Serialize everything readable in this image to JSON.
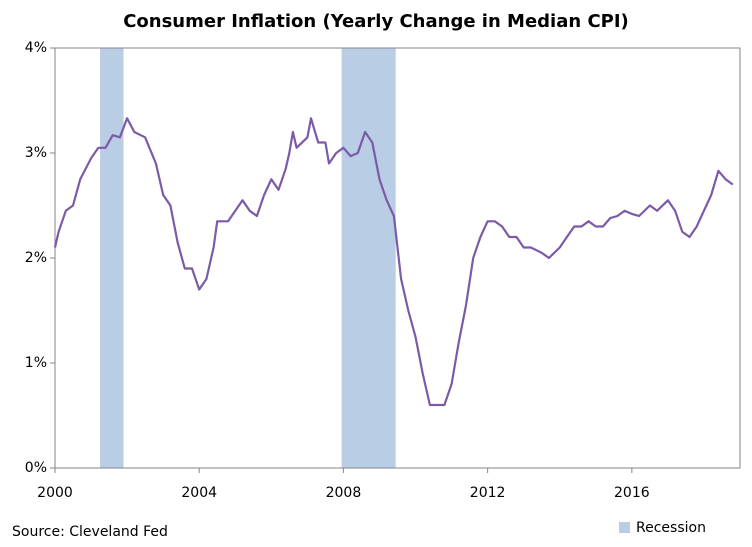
{
  "chart_data": {
    "type": "line",
    "title": "Consumer Inflation (Yearly Change in Median CPI)",
    "source": "Source: Cleveland Fed",
    "xlim": [
      2000,
      2019
    ],
    "xticks": [
      2000,
      2004,
      2008,
      2012,
      2016
    ],
    "ylim": [
      0,
      4
    ],
    "yticks": [
      {
        "value": 0,
        "label": "0%"
      },
      {
        "value": 1,
        "label": "1%"
      },
      {
        "value": 2,
        "label": "2%"
      },
      {
        "value": 3,
        "label": "3%"
      },
      {
        "value": 4,
        "label": "4%"
      }
    ],
    "grid": false,
    "recessions": {
      "name": "Recession",
      "color": "#b9cde5",
      "ranges": [
        [
          2001.25,
          2001.9
        ],
        [
          2007.95,
          2009.45
        ]
      ]
    },
    "series": [
      {
        "color": "#7b5ba8",
        "x": [
          2000.0,
          2000.1,
          2000.3,
          2000.5,
          2000.7,
          2001.0,
          2001.2,
          2001.4,
          2001.6,
          2001.8,
          2002.0,
          2002.2,
          2002.5,
          2002.8,
          2003.0,
          2003.2,
          2003.4,
          2003.6,
          2003.8,
          2004.0,
          2004.2,
          2004.4,
          2004.5,
          2004.8,
          2005.0,
          2005.2,
          2005.4,
          2005.6,
          2005.8,
          2006.0,
          2006.2,
          2006.4,
          2006.5,
          2006.6,
          2006.7,
          2007.0,
          2007.1,
          2007.3,
          2007.5,
          2007.6,
          2007.8,
          2008.0,
          2008.2,
          2008.4,
          2008.6,
          2008.8,
          2009.0,
          2009.2,
          2009.4,
          2009.6,
          2009.8,
          2010.0,
          2010.2,
          2010.4,
          2010.6,
          2010.8,
          2011.0,
          2011.2,
          2011.4,
          2011.6,
          2011.8,
          2012.0,
          2012.2,
          2012.4,
          2012.6,
          2012.8,
          2013.0,
          2013.2,
          2013.5,
          2013.7,
          2014.0,
          2014.2,
          2014.4,
          2014.6,
          2014.8,
          2015.0,
          2015.2,
          2015.4,
          2015.6,
          2015.8,
          2016.0,
          2016.2,
          2016.5,
          2016.7,
          2017.0,
          2017.2,
          2017.4,
          2017.6,
          2017.8,
          2018.0,
          2018.2,
          2018.4,
          2018.6,
          2018.8
        ],
        "values": [
          2.1,
          2.25,
          2.45,
          2.5,
          2.75,
          2.95,
          3.05,
          3.05,
          3.17,
          3.15,
          3.33,
          3.2,
          3.15,
          2.9,
          2.6,
          2.5,
          2.15,
          1.9,
          1.9,
          1.7,
          1.8,
          2.1,
          2.35,
          2.35,
          2.45,
          2.55,
          2.45,
          2.4,
          2.6,
          2.75,
          2.65,
          2.85,
          3.0,
          3.2,
          3.05,
          3.15,
          3.33,
          3.1,
          3.1,
          2.9,
          3.0,
          3.05,
          2.97,
          3.0,
          3.2,
          3.1,
          2.75,
          2.55,
          2.4,
          1.8,
          1.5,
          1.25,
          0.9,
          0.6,
          0.6,
          0.6,
          0.8,
          1.2,
          1.55,
          2.0,
          2.2,
          2.35,
          2.35,
          2.3,
          2.2,
          2.2,
          2.1,
          2.1,
          2.05,
          2.0,
          2.1,
          2.2,
          2.3,
          2.3,
          2.35,
          2.3,
          2.3,
          2.38,
          2.4,
          2.45,
          2.42,
          2.4,
          2.5,
          2.45,
          2.55,
          2.45,
          2.25,
          2.2,
          2.3,
          2.45,
          2.6,
          2.83,
          2.75,
          2.7
        ]
      }
    ]
  }
}
